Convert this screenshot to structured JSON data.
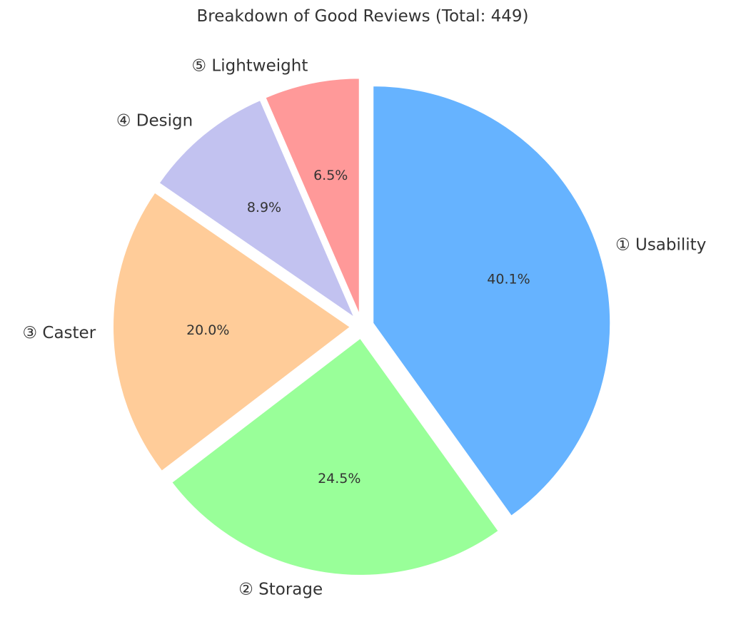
{
  "chart_data": {
    "type": "pie",
    "title": "Breakdown of Good Reviews (Total: 449)",
    "slices": [
      {
        "label": "① Usability",
        "value": 40.1,
        "value_label": "40.1%",
        "color": "#66b3ff"
      },
      {
        "label": "② Storage",
        "value": 24.5,
        "value_label": "24.5%",
        "color": "#99ff99"
      },
      {
        "label": "③ Caster",
        "value": 20.0,
        "value_label": "20.0%",
        "color": "#ffcc99"
      },
      {
        "label": "④ Design",
        "value": 8.9,
        "value_label": "8.9%",
        "color": "#c2c2f0"
      },
      {
        "label": "⑤ Lightweight",
        "value": 6.5,
        "value_label": "6.5%",
        "color": "#ff9999"
      }
    ],
    "start": "top",
    "direction": "clockwise",
    "exploded": true,
    "legend": "none"
  }
}
